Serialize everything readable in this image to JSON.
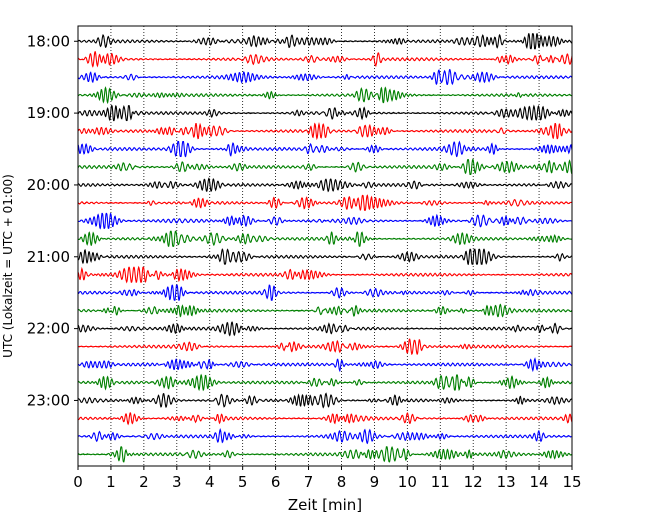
{
  "chart_data": {
    "type": "line",
    "title": "",
    "xlabel": "Zeit  [min]",
    "ylabel": "UTC (Lokalzeit = UTC + 01:00)",
    "xlim": [
      0,
      15
    ],
    "x_ticks": [
      0,
      1,
      2,
      3,
      4,
      5,
      6,
      7,
      8,
      9,
      10,
      11,
      12,
      13,
      14,
      15
    ],
    "y_tick_labels": [
      "18:00",
      "19:00",
      "20:00",
      "21:00",
      "22:00",
      "23:00"
    ],
    "rows_per_hour": 4,
    "row_start_times": [
      "18:00",
      "18:15",
      "18:30",
      "18:45",
      "19:00",
      "19:15",
      "19:30",
      "19:45",
      "20:00",
      "20:15",
      "20:30",
      "20:45",
      "21:00",
      "21:15",
      "21:30",
      "21:45",
      "22:00",
      "22:15",
      "22:30",
      "22:45",
      "23:00",
      "23:15",
      "23:30",
      "23:45"
    ],
    "row_colors": [
      "#000000",
      "#ff0000",
      "#0000ff",
      "#008000"
    ],
    "grid": {
      "vertical": "dotted",
      "horizontal": "none"
    },
    "legend": "none"
  }
}
